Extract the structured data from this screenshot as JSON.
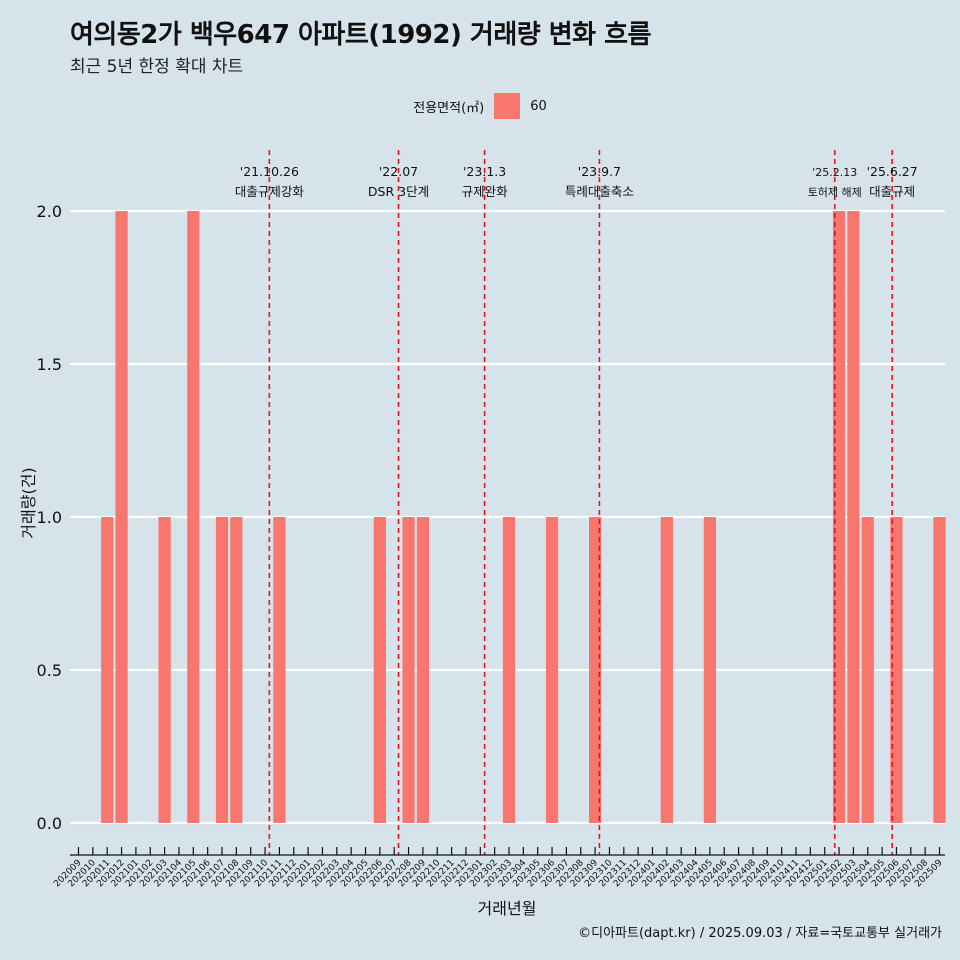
{
  "title": "여의동2가 백우647 아파트(1992) 거래량 변화 흐름",
  "subtitle": "최근 5년 한정 확대 차트",
  "legend": {
    "title": "전용면적(㎡)",
    "label": "60",
    "color": "#f8766d"
  },
  "caption": "©디아파트(dapt.kr) / 2025.09.03 / 자료=국토교통부 실거래가",
  "chart_data": {
    "type": "bar",
    "xlabel": "거래년월",
    "ylabel": "거래량(건)",
    "ylim": [
      0,
      2
    ],
    "yticks": [
      "0.0",
      "0.5",
      "1.0",
      "1.5",
      "2.0"
    ],
    "ytick_values": [
      0,
      0.5,
      1,
      1.5,
      2
    ],
    "categories": [
      "202009",
      "202010",
      "202011",
      "202012",
      "202101",
      "202102",
      "202103",
      "202104",
      "202105",
      "202106",
      "202107",
      "202108",
      "202109",
      "202110",
      "202111",
      "202112",
      "202201",
      "202202",
      "202203",
      "202204",
      "202205",
      "202206",
      "202207",
      "202208",
      "202209",
      "202210",
      "202211",
      "202212",
      "202301",
      "202302",
      "202303",
      "202304",
      "202305",
      "202306",
      "202307",
      "202308",
      "202309",
      "202310",
      "202311",
      "202312",
      "202401",
      "202402",
      "202403",
      "202404",
      "202405",
      "202406",
      "202407",
      "202408",
      "202409",
      "202410",
      "202411",
      "202412",
      "202501",
      "202502",
      "202503",
      "202504",
      "202505",
      "202506",
      "202507",
      "202508",
      "202509"
    ],
    "series": [
      {
        "name": "60",
        "color": "#f8766d",
        "values": [
          0,
          0,
          1,
          2,
          0,
          0,
          1,
          0,
          2,
          0,
          1,
          1,
          0,
          0,
          1,
          0,
          0,
          0,
          0,
          0,
          0,
          1,
          0,
          1,
          1,
          0,
          0,
          0,
          0,
          0,
          1,
          0,
          0,
          1,
          0,
          0,
          1,
          0,
          0,
          0,
          0,
          1,
          0,
          0,
          1,
          0,
          0,
          0,
          0,
          0,
          0,
          0,
          0,
          2,
          2,
          1,
          0,
          1,
          0,
          0,
          1
        ]
      }
    ],
    "annotations": [
      {
        "date_label": "'21.10.26",
        "event": "대출규제강화",
        "x": 13.3
      },
      {
        "date_label": "'22.07",
        "event": "DSR 3단계",
        "x": 22.3
      },
      {
        "date_label": "'23.1.3",
        "event": "규제완화",
        "x": 28.3
      },
      {
        "date_label": "'23.9.7",
        "event": "특례대출축소",
        "x": 36.3
      },
      {
        "date_label": "'25.2.13",
        "event": "토허제 해제",
        "x": 52.7
      },
      {
        "date_label": "'25.6.27",
        "event": "대출규제",
        "x": 56.7
      }
    ]
  }
}
